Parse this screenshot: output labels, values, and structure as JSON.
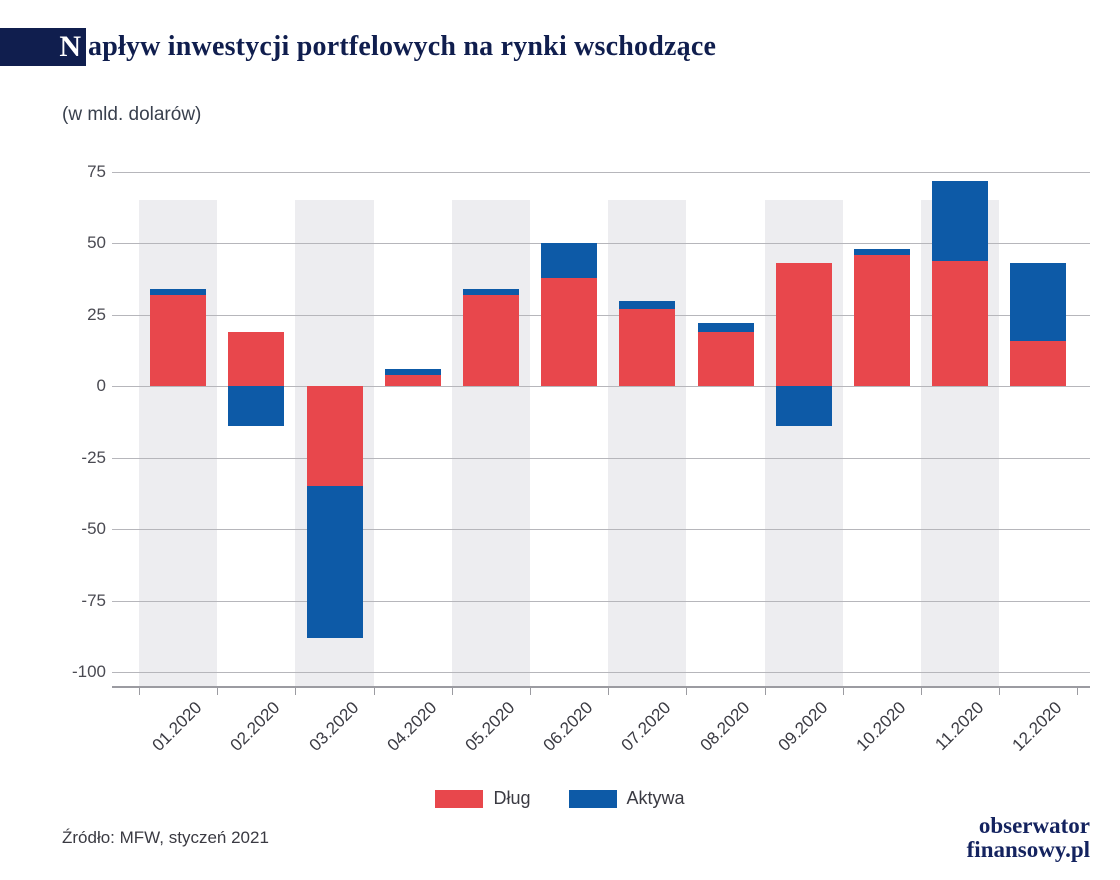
{
  "header": {
    "title_initial": "N",
    "title_rest": "apływ inwestycji portfelowych na rynki wschodzące",
    "subtitle": "(w mld. dolarów)"
  },
  "footer": {
    "source": "Źródło: MFW, styczeń 2021",
    "logo_line1": "obserwator",
    "logo_line2": "finansowy.pl"
  },
  "colors": {
    "navy": "#101e4e",
    "dlug_red": "#e8474c",
    "aktywa_blue": "#0d5aa7",
    "band_gray": "#ededf0",
    "grid_gray": "#b6b6bb"
  },
  "chart_data": {
    "type": "bar",
    "stacked": true,
    "title": "Napływ inwestycji portfelowych na rynki wschodzące",
    "unit_label": "(w mld. dolarów)",
    "categories": [
      "01.2020",
      "02.2020",
      "03.2020",
      "04.2020",
      "05.2020",
      "06.2020",
      "07.2020",
      "08.2020",
      "09.2020",
      "10.2020",
      "11.2020",
      "12.2020"
    ],
    "series": [
      {
        "name": "Dług",
        "color": "#e8474c",
        "values": [
          32,
          19,
          -35,
          4,
          32,
          38,
          27,
          19,
          43,
          46,
          44,
          16
        ]
      },
      {
        "name": "Aktywa",
        "color": "#0d5aa7",
        "values": [
          2,
          -14,
          -53,
          2,
          2,
          12,
          3,
          3,
          -14,
          2,
          28,
          27
        ]
      }
    ],
    "ylim": [
      -100,
      75
    ],
    "yticks": [
      75,
      50,
      25,
      0,
      -25,
      -50,
      -75,
      -100
    ],
    "grid": "horizontal",
    "legend_position": "bottom"
  }
}
